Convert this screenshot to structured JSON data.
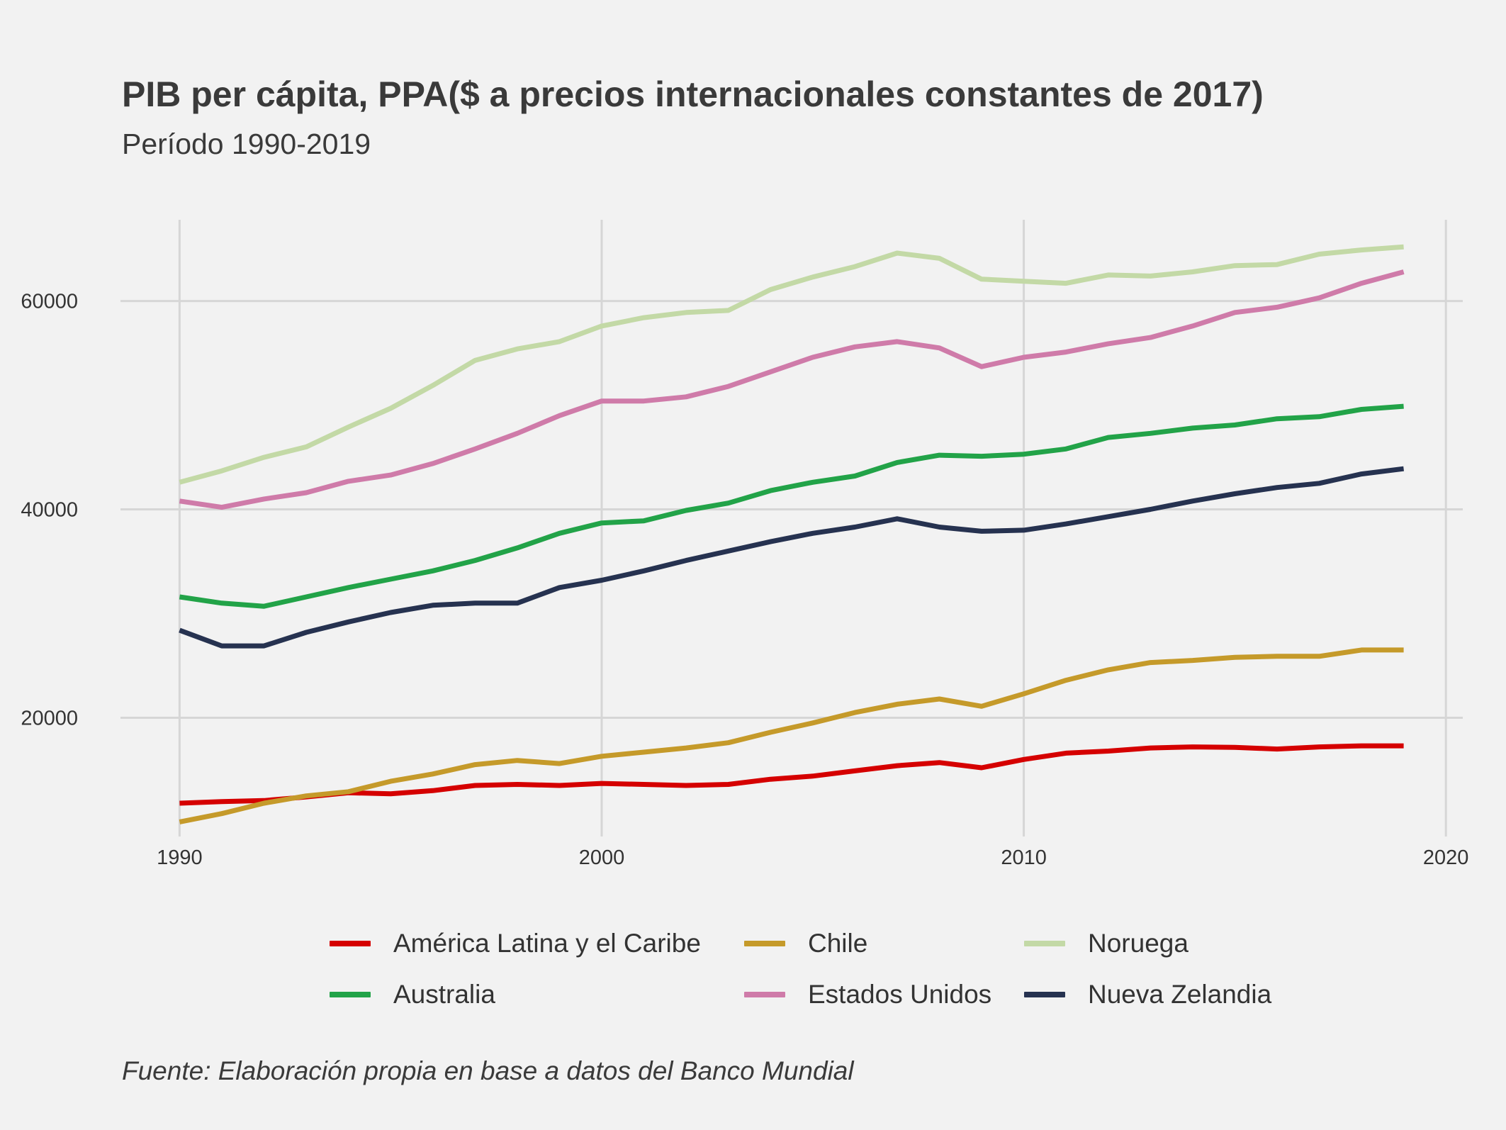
{
  "chart_data": {
    "type": "line",
    "title": "PIB per cápita, PPA($ a precios internacionales constantes de 2017)",
    "subtitle": "Período 1990-2019",
    "caption": "Fuente: Elaboración propia en base a datos del Banco Mundial",
    "xlabel": "",
    "ylabel": "",
    "xlim": [
      1988.6,
      2020.4
    ],
    "ylim": [
      8600,
      67800
    ],
    "x_ticks": [
      1990,
      2000,
      2010,
      2020
    ],
    "y_ticks": [
      20000,
      40000,
      60000
    ],
    "grid": true,
    "legend_position": "bottom",
    "x": [
      1990,
      1991,
      1992,
      1993,
      1994,
      1995,
      1996,
      1997,
      1998,
      1999,
      2000,
      2001,
      2002,
      2003,
      2004,
      2005,
      2006,
      2007,
      2008,
      2009,
      2010,
      2011,
      2012,
      2013,
      2014,
      2015,
      2016,
      2017,
      2018,
      2019
    ],
    "series": [
      {
        "name": "América Latina y el Caribe",
        "color": "#d50000",
        "values": [
          11800,
          11950,
          12050,
          12400,
          12800,
          12700,
          13000,
          13500,
          13600,
          13500,
          13700,
          13600,
          13500,
          13600,
          14100,
          14400,
          14900,
          15400,
          15700,
          15200,
          16000,
          16600,
          16800,
          17100,
          17200,
          17150,
          17000,
          17200,
          17300,
          17300
        ]
      },
      {
        "name": "Chile",
        "color": "#c59a2a",
        "values": [
          10000,
          10800,
          11800,
          12500,
          12900,
          13900,
          14600,
          15500,
          15900,
          15600,
          16300,
          16700,
          17100,
          17600,
          18600,
          19500,
          20500,
          21300,
          21800,
          21100,
          22300,
          23600,
          24600,
          25300,
          25500,
          25800,
          25900,
          25900,
          26500,
          26500
        ]
      },
      {
        "name": "Noruega",
        "color": "#c3d9a6",
        "values": [
          42600,
          43700,
          45000,
          46000,
          47900,
          49700,
          51900,
          54300,
          55400,
          56100,
          57600,
          58400,
          58900,
          59100,
          61100,
          62300,
          63300,
          64600,
          64100,
          62100,
          61900,
          61700,
          62500,
          62400,
          62800,
          63400,
          63500,
          64500,
          64900,
          65200
        ]
      },
      {
        "name": "Australia",
        "color": "#22a348",
        "values": [
          31600,
          31000,
          30700,
          31600,
          32500,
          33300,
          34100,
          35100,
          36300,
          37700,
          38700,
          38900,
          39900,
          40600,
          41800,
          42600,
          43200,
          44500,
          45200,
          45100,
          45300,
          45800,
          46900,
          47300,
          47800,
          48100,
          48700,
          48900,
          49600,
          49900
        ]
      },
      {
        "name": "Estados Unidos",
        "color": "#cf7ba9",
        "values": [
          40800,
          40200,
          41000,
          41600,
          42700,
          43300,
          44400,
          45800,
          47300,
          49000,
          50400,
          50400,
          50800,
          51800,
          53200,
          54600,
          55600,
          56100,
          55500,
          53700,
          54600,
          55100,
          55900,
          56500,
          57600,
          58900,
          59400,
          60300,
          61700,
          62800
        ]
      },
      {
        "name": "Nueva Zelandia",
        "color": "#263250",
        "values": [
          28400,
          26900,
          26900,
          28200,
          29200,
          30100,
          30800,
          31000,
          31000,
          32500,
          33200,
          34100,
          35100,
          36000,
          36900,
          37700,
          38300,
          39100,
          38300,
          37900,
          38000,
          38600,
          39300,
          40000,
          40800,
          41500,
          42100,
          42500,
          43400,
          43900
        ]
      }
    ]
  }
}
